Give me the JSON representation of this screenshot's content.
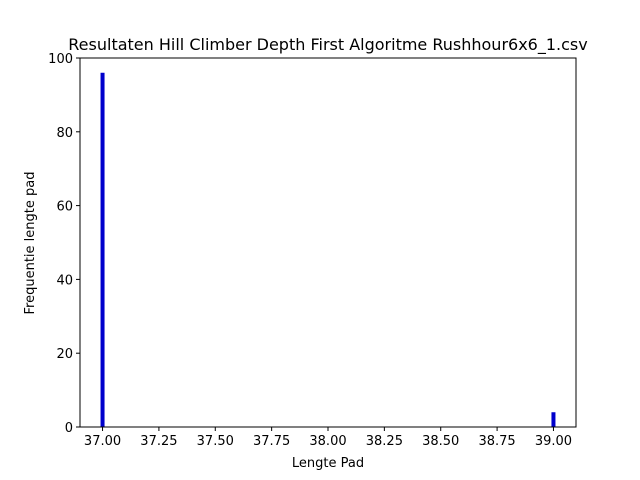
{
  "chart_data": {
    "type": "bar",
    "title": "Resultaten Hill Climber Depth First Algoritme Rushhour6x6_1.csv",
    "xlabel": "Lengte Pad",
    "ylabel": "Frequentie lengte pad",
    "xlim": [
      36.9,
      39.1
    ],
    "ylim": [
      0,
      100
    ],
    "xticks": [
      37.0,
      37.25,
      37.5,
      37.75,
      38.0,
      38.25,
      38.5,
      38.75,
      39.0
    ],
    "xtick_labels": [
      "37.00",
      "37.25",
      "37.50",
      "37.75",
      "38.00",
      "38.25",
      "38.50",
      "38.75",
      "39.00"
    ],
    "yticks": [
      0,
      20,
      40,
      60,
      80,
      100
    ],
    "ytick_labels": [
      "0",
      "20",
      "40",
      "60",
      "80",
      "100"
    ],
    "grid": false,
    "bar_color": "#0000cc",
    "bars": [
      {
        "x": 37.0,
        "value": 96
      },
      {
        "x": 39.0,
        "value": 4
      }
    ]
  }
}
